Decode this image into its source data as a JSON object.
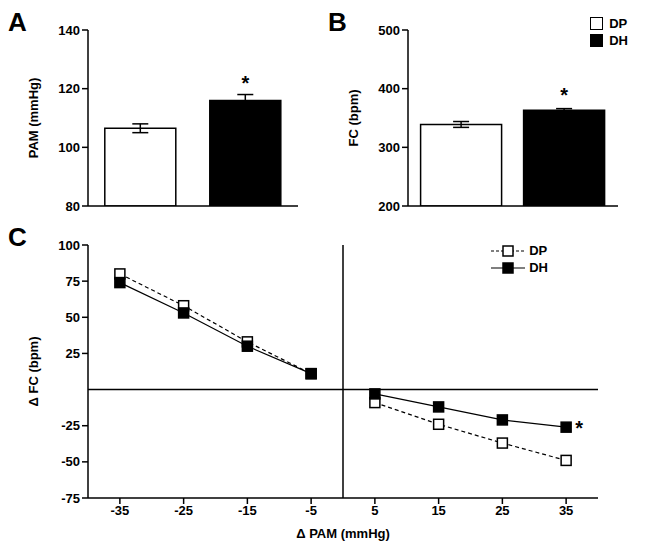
{
  "chart_data": [
    {
      "type": "bar",
      "title": "A",
      "categories": [
        null,
        null
      ],
      "values": [
        106.5,
        116
      ],
      "errors": [
        1.5,
        2
      ],
      "colors": [
        "#ffffff",
        "#000000"
      ],
      "y_label": "PAM (mmHg)",
      "ylim": [
        80,
        140
      ],
      "yticks": [
        80,
        100,
        120,
        140
      ],
      "tick_labels": "y",
      "annotations": [
        {
          "text": "*",
          "index": 1
        }
      ]
    },
    {
      "type": "bar",
      "title": "B",
      "categories": [
        null
      ],
      "series": [
        {
          "name": "DP",
          "color": "#ffffff",
          "values": [
            339
          ],
          "errors": [
            5
          ]
        },
        {
          "name": "DH",
          "color": "#000000",
          "values": [
            363
          ],
          "errors": [
            3
          ]
        }
      ],
      "y_label": "FC (bpm)",
      "ylim": [
        200,
        500
      ],
      "yticks": [
        200,
        300,
        400,
        500
      ],
      "tick_labels": "y",
      "legend": "top right",
      "annotations": [
        {
          "text": "*",
          "series": "DH"
        }
      ]
    },
    {
      "type": "line",
      "title": "C",
      "x_label": "Δ PAM (mmHg)",
      "y_label": "Δ FC (bpm)",
      "x": [
        -35,
        -25,
        -15,
        -5,
        0,
        5,
        15,
        25,
        35
      ],
      "series": [
        {
          "name": "DP",
          "color": "#000000",
          "marker": "open square",
          "line_style": "dashed",
          "values": [
            80,
            58,
            33,
            11,
            null,
            -9,
            -24,
            -37,
            -49
          ]
        },
        {
          "name": "DH",
          "color": "#000000",
          "marker": "square",
          "line_style": "solid",
          "values": [
            74,
            53,
            30,
            11,
            null,
            -3,
            -12,
            -21,
            -26
          ]
        }
      ],
      "xlim": [
        -40,
        40
      ],
      "xticks": [
        -35,
        -25,
        -15,
        -5,
        5,
        15,
        25,
        35
      ],
      "ylim": [
        -75,
        100
      ],
      "yticks": [
        -75,
        -50,
        -25,
        25,
        50,
        75,
        100
      ],
      "legend": "top right",
      "annotations": [
        {
          "text": "*",
          "series": "DH"
        }
      ]
    }
  ]
}
